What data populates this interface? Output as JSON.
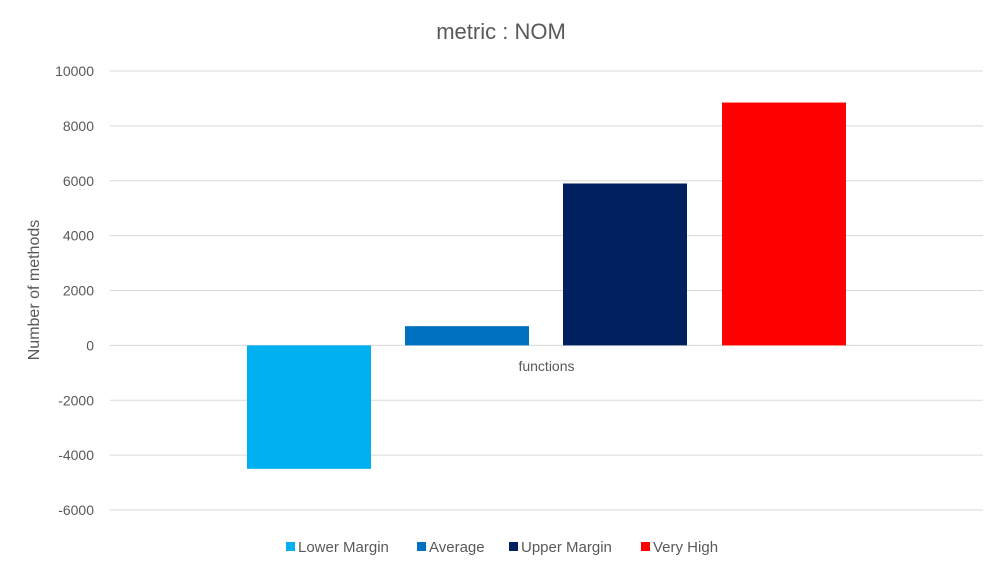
{
  "chart_data": {
    "type": "bar",
    "title": "metric : NOM",
    "xlabel": "",
    "ylabel": "Number of methods",
    "categories": [
      "functions"
    ],
    "series": [
      {
        "name": "Lower Margin",
        "values": [
          -4500
        ],
        "color": "#00b0f0"
      },
      {
        "name": "Average",
        "values": [
          700
        ],
        "color": "#0070c0"
      },
      {
        "name": "Upper Margin",
        "values": [
          5900
        ],
        "color": "#002060"
      },
      {
        "name": "Very High",
        "values": [
          8850
        ],
        "color": "#ff0000"
      }
    ],
    "ylim": [
      -6000,
      10000
    ],
    "yticks": [
      -6000,
      -4000,
      -2000,
      0,
      2000,
      4000,
      6000,
      8000,
      10000
    ],
    "grid": true,
    "legend_position": "bottom"
  }
}
